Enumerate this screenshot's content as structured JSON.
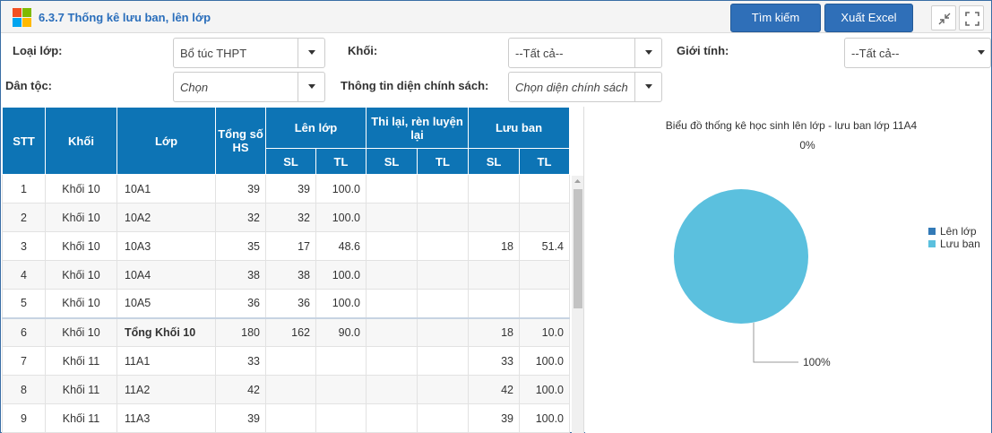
{
  "window": {
    "title": "6.3.7 Thống kê lưu ban, lên lớp"
  },
  "toolbar": {
    "search_label": "Tìm kiếm",
    "export_label": "Xuất Excel"
  },
  "filters": {
    "loai_lop": {
      "label": "Loại lớp:",
      "value": "Bổ túc THPT"
    },
    "khoi": {
      "label": "Khối:",
      "value": "--Tất cả--"
    },
    "gioi_tinh": {
      "label": "Giới tính:",
      "value": "--Tất cả--"
    },
    "dan_toc": {
      "label": "Dân tộc:",
      "value": "Chọn"
    },
    "chinh_sach": {
      "label": "Thông tin diện chính sách:",
      "value": "Chọn diện chính sách"
    }
  },
  "table": {
    "headers": {
      "stt": "STT",
      "khoi": "Khối",
      "lop": "Lớp",
      "tong": "Tổng số HS",
      "len_lop": "Lên lớp",
      "thi_lai": "Thi lại, rèn luyện lại",
      "luu_ban": "Lưu ban",
      "sl": "SL",
      "tl": "TL"
    },
    "rows": [
      {
        "stt": "1",
        "khoi": "Khối 10",
        "lop": "10A1",
        "tong": "39",
        "len_sl": "39",
        "len_tl": "100.0",
        "thi_sl": "",
        "thi_tl": "",
        "luu_sl": "",
        "luu_tl": ""
      },
      {
        "stt": "2",
        "khoi": "Khối 10",
        "lop": "10A2",
        "tong": "32",
        "len_sl": "32",
        "len_tl": "100.0",
        "thi_sl": "",
        "thi_tl": "",
        "luu_sl": "",
        "luu_tl": ""
      },
      {
        "stt": "3",
        "khoi": "Khối 10",
        "lop": "10A3",
        "tong": "35",
        "len_sl": "17",
        "len_tl": "48.6",
        "thi_sl": "",
        "thi_tl": "",
        "luu_sl": "18",
        "luu_tl": "51.4"
      },
      {
        "stt": "4",
        "khoi": "Khối 10",
        "lop": "10A4",
        "tong": "38",
        "len_sl": "38",
        "len_tl": "100.0",
        "thi_sl": "",
        "thi_tl": "",
        "luu_sl": "",
        "luu_tl": ""
      },
      {
        "stt": "5",
        "khoi": "Khối 10",
        "lop": "10A5",
        "tong": "36",
        "len_sl": "36",
        "len_tl": "100.0",
        "thi_sl": "",
        "thi_tl": "",
        "luu_sl": "",
        "luu_tl": ""
      },
      {
        "stt": "6",
        "khoi": "Khối 10",
        "lop": "Tổng Khối 10",
        "tong": "180",
        "len_sl": "162",
        "len_tl": "90.0",
        "thi_sl": "",
        "thi_tl": "",
        "luu_sl": "18",
        "luu_tl": "10.0",
        "total": true
      },
      {
        "stt": "7",
        "khoi": "Khối 11",
        "lop": "11A1",
        "tong": "33",
        "len_sl": "",
        "len_tl": "",
        "thi_sl": "",
        "thi_tl": "",
        "luu_sl": "33",
        "luu_tl": "100.0"
      },
      {
        "stt": "8",
        "khoi": "Khối 11",
        "lop": "11A2",
        "tong": "42",
        "len_sl": "",
        "len_tl": "",
        "thi_sl": "",
        "thi_tl": "",
        "luu_sl": "42",
        "luu_tl": "100.0"
      },
      {
        "stt": "9",
        "khoi": "Khối 11",
        "lop": "11A3",
        "tong": "39",
        "len_sl": "",
        "len_tl": "",
        "thi_sl": "",
        "thi_tl": "",
        "luu_sl": "39",
        "luu_tl": "100.0"
      }
    ]
  },
  "chart_data": {
    "type": "pie",
    "title": "Biểu đồ thống kê học sinh lên lớp - lưu ban lớp 11A4",
    "series": [
      {
        "name": "Lên lớp",
        "value": 0,
        "label": "0%",
        "color": "#337ab7"
      },
      {
        "name": "Lưu ban",
        "value": 100,
        "label": "100%",
        "color": "#5bc0de"
      }
    ],
    "legend_position": "right"
  }
}
